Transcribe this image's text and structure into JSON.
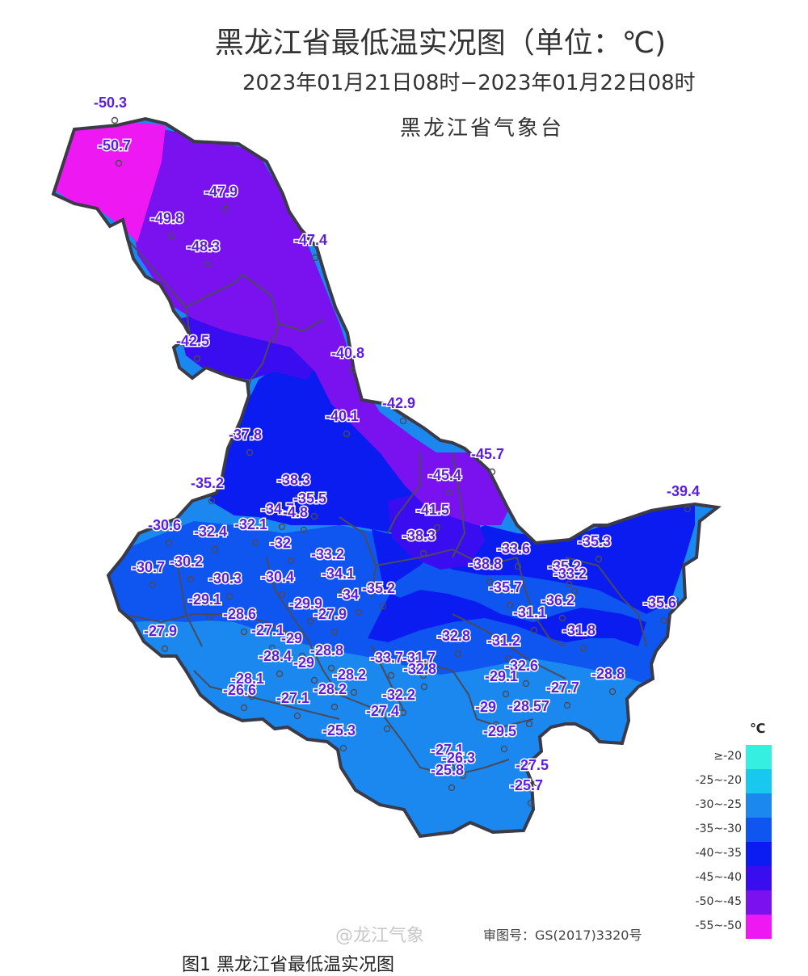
{
  "header": {
    "title": "黑龙江省最低温实况图（单位：℃)",
    "subtitle": "2023年01月21日08时−2023年01月22日08时",
    "agency": "黑龙江省气象台"
  },
  "legend": {
    "unit": "℃",
    "items": [
      {
        "label": "≥-20",
        "color": "#35f0e0"
      },
      {
        "label": "-25~-20",
        "color": "#18c8ee"
      },
      {
        "label": "-30~-25",
        "color": "#1a88ee"
      },
      {
        "label": "-35~-30",
        "color": "#0f55f0"
      },
      {
        "label": "-40~-35",
        "color": "#0a1cf0"
      },
      {
        "label": "-45~-40",
        "color": "#3a0cf0"
      },
      {
        "label": "-50~-45",
        "color": "#7a12f0"
      },
      {
        "label": "-55~-50",
        "color": "#ee18f2"
      }
    ]
  },
  "stations": [
    "-50.3",
    "-50.7",
    "-47.9",
    "-49.8",
    "-48.3",
    "-47.4",
    "-42.5",
    "-40.8",
    "-42.9",
    "-40.1",
    "-37.8",
    "-45.7",
    "-45.4",
    "-39.4",
    "-35.2",
    "-38.3",
    "-35.5",
    "-34.7",
    "-4.8",
    "-41.5",
    "-30.6",
    "-32.4",
    "-32.1",
    "-38.3",
    "-33.6",
    "-35.3",
    "-32",
    "-33.2",
    "-30.7",
    "-30.2",
    "-38.8",
    "-35.2",
    "-33.2",
    "-30.3",
    "-30.4",
    "-34.1",
    "-35.2",
    "-34",
    "-35.7",
    "-29.1",
    "-36.2",
    "-35.6",
    "-28.6",
    "-29.9",
    "-27.9",
    "-31.1",
    "-27.9",
    "-27.1",
    "-32.8",
    "-31.2",
    "-31.8",
    "-29",
    "-28.4",
    "-28.8",
    "-33.7",
    "-31.7",
    "-29",
    "-32.8",
    "-32.6",
    "-28.8",
    "-28.1",
    "-28.2",
    "-29.1",
    "-26.6",
    "-27.1",
    "-28.2",
    "-27.7",
    "-32.2",
    "-29",
    "-28.57",
    "-27.4",
    "-25.3",
    "-29.5",
    "-27.1",
    "-26.3",
    "-25.8",
    "-27.5",
    "-25.7"
  ],
  "footer": {
    "review_no": "审图号：GS(2017)3320号",
    "watermark": "@龙江气象",
    "caption": "图1 黑龙江省最低温实况图"
  }
}
